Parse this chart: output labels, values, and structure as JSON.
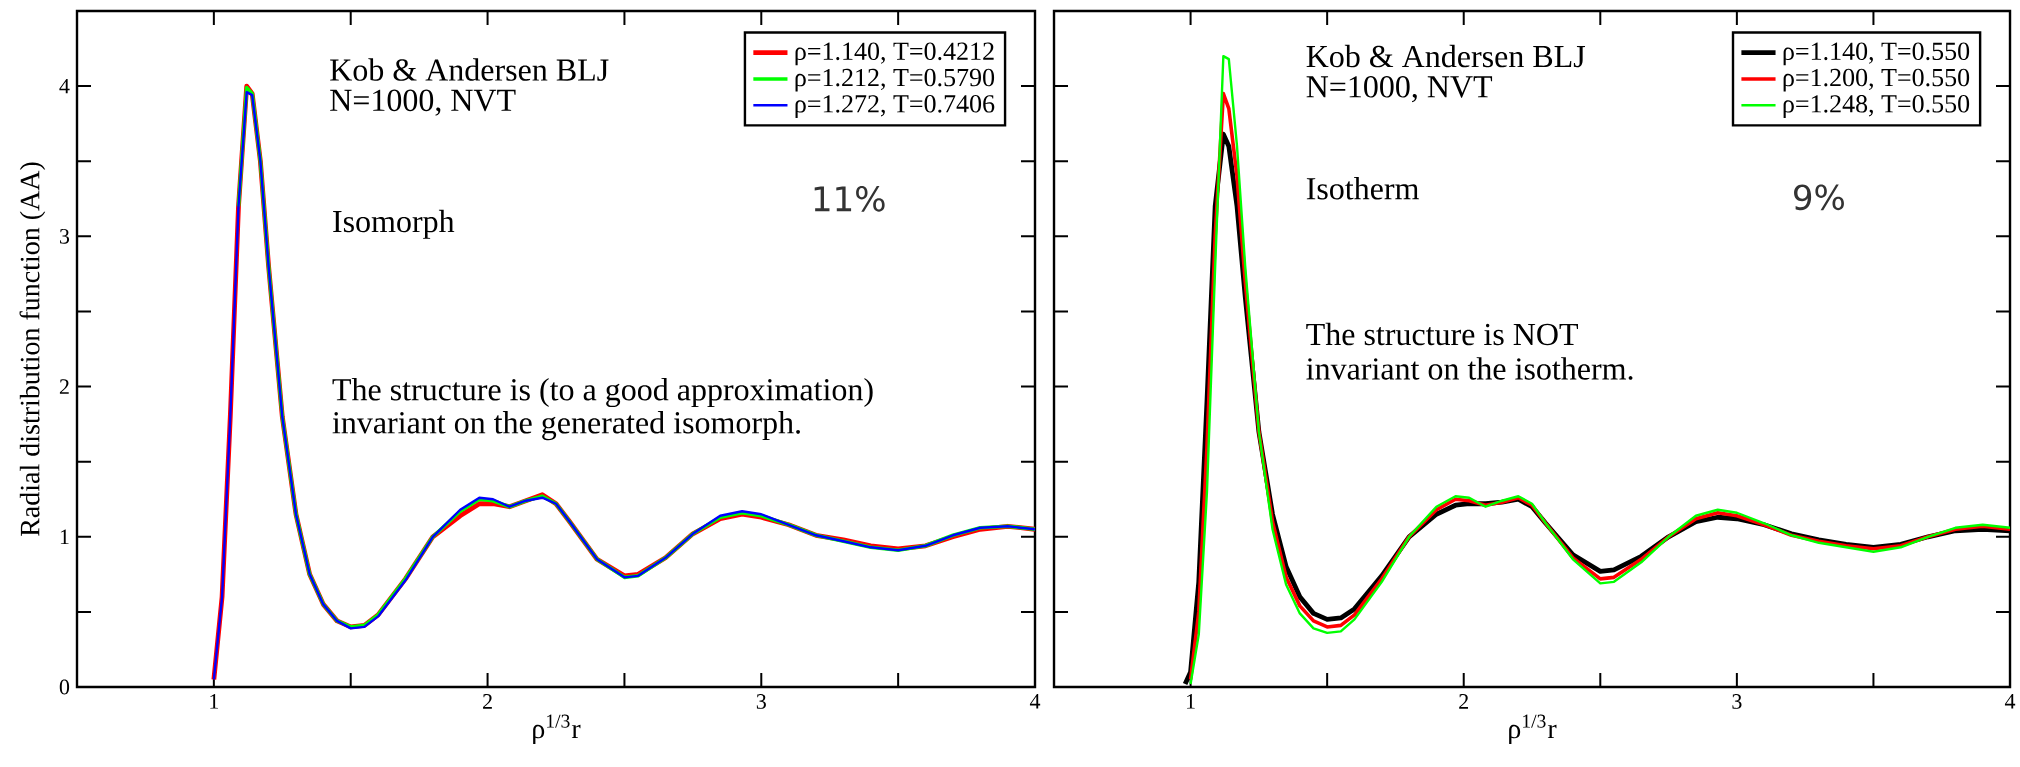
{
  "chart_data": [
    {
      "type": "line",
      "xlabel": "ρ$^{1/3}$r",
      "ylabel": "Radial distribution function (AA)",
      "annotations": [
        "Kob & Andersen  BLJ",
        "N=1000, NVT",
        "Isomorph",
        "11%",
        "The structure is (to a good approximation)",
        "invariant on the generated isomorph."
      ],
      "x": [
        1.0,
        1.03,
        1.06,
        1.09,
        1.12,
        1.14,
        1.17,
        1.2,
        1.25,
        1.3,
        1.35,
        1.4,
        1.45,
        1.5,
        1.55,
        1.6,
        1.7,
        1.8,
        1.9,
        1.97,
        2.02,
        2.08,
        2.14,
        2.2,
        2.25,
        2.3,
        2.4,
        2.5,
        2.55,
        2.65,
        2.75,
        2.85,
        2.93,
        3.0,
        3.1,
        3.2,
        3.3,
        3.4,
        3.5,
        3.6,
        3.7,
        3.8,
        3.9,
        4.0
      ],
      "series": [
        {
          "name": "ρ=1.140, T=0.4212",
          "color": "#ff0000",
          "values": [
            0.05,
            0.6,
            1.8,
            3.2,
            4.0,
            3.95,
            3.5,
            2.8,
            1.8,
            1.15,
            0.75,
            0.55,
            0.44,
            0.4,
            0.41,
            0.48,
            0.72,
            1.0,
            1.14,
            1.22,
            1.22,
            1.2,
            1.24,
            1.28,
            1.22,
            1.1,
            0.85,
            0.74,
            0.75,
            0.86,
            1.02,
            1.12,
            1.15,
            1.13,
            1.08,
            1.01,
            0.98,
            0.94,
            0.92,
            0.94,
            1.0,
            1.05,
            1.07,
            1.05
          ]
        },
        {
          "name": "ρ=1.212, T=0.5790",
          "color": "#00ff00",
          "values": [
            null,
            null,
            null,
            3.2,
            3.99,
            3.95,
            3.5,
            2.8,
            1.8,
            1.15,
            0.75,
            0.55,
            0.44,
            0.4,
            0.41,
            0.48,
            0.72,
            1.0,
            1.17,
            1.25,
            1.24,
            1.2,
            1.24,
            1.27,
            1.22,
            1.1,
            0.85,
            0.73,
            0.74,
            0.86,
            1.02,
            1.13,
            1.16,
            1.14,
            1.08,
            1.01,
            0.97,
            0.93,
            0.91,
            0.94,
            1.01,
            1.06,
            1.07,
            1.05
          ]
        },
        {
          "name": "ρ=1.272, T=0.7406",
          "color": "#0000ff",
          "values": [
            0.05,
            0.6,
            1.8,
            3.2,
            3.96,
            3.94,
            3.5,
            2.8,
            1.8,
            1.15,
            0.75,
            0.55,
            0.44,
            0.39,
            0.4,
            0.47,
            0.71,
            1.0,
            1.18,
            1.26,
            1.25,
            1.2,
            1.24,
            1.26,
            1.22,
            1.1,
            0.85,
            0.73,
            0.74,
            0.86,
            1.02,
            1.14,
            1.17,
            1.15,
            1.08,
            1.01,
            0.97,
            0.93,
            0.91,
            0.94,
            1.01,
            1.06,
            1.07,
            1.05
          ]
        }
      ],
      "xlim": [
        0.5,
        4
      ],
      "ylim": [
        0,
        4.5
      ],
      "xticks": [
        1,
        {
          "value": 1.5,
          "label": null
        },
        2,
        {
          "value": 2.5,
          "label": null
        },
        3,
        {
          "value": 3.5,
          "label": null
        },
        4
      ],
      "yticks": [
        0,
        {
          "value": 0.5,
          "label": null
        },
        1,
        {
          "value": 1.5,
          "label": null
        },
        2,
        {
          "value": 2.5,
          "label": null
        },
        3,
        {
          "value": 3.5,
          "label": null
        },
        4
      ],
      "legend": "top right",
      "grid": false
    },
    {
      "type": "line",
      "xlabel": "ρ$^{1/3}$r",
      "annotations": [
        "Kob & Andersen  BLJ",
        "N=1000, NVT",
        "Isotherm",
        "9%",
        "The structure is NOT",
        "invariant on the isotherm."
      ],
      "x": [
        0.98,
        1.0,
        1.03,
        1.06,
        1.09,
        1.12,
        1.14,
        1.17,
        1.2,
        1.25,
        1.3,
        1.35,
        1.4,
        1.45,
        1.5,
        1.55,
        1.6,
        1.7,
        1.8,
        1.9,
        1.97,
        2.02,
        2.08,
        2.14,
        2.2,
        2.25,
        2.3,
        2.4,
        2.5,
        2.55,
        2.65,
        2.75,
        2.85,
        2.93,
        3.0,
        3.1,
        3.2,
        3.3,
        3.4,
        3.5,
        3.6,
        3.7,
        3.8,
        3.9,
        4.0
      ],
      "series": [
        {
          "name": "ρ=1.140, T=0.550",
          "color": "#000000",
          "values": [
            0.02,
            0.1,
            0.7,
            1.9,
            3.2,
            3.68,
            3.6,
            3.2,
            2.6,
            1.7,
            1.15,
            0.8,
            0.6,
            0.49,
            0.45,
            0.46,
            0.52,
            0.74,
            1.0,
            1.15,
            1.21,
            1.22,
            1.22,
            1.23,
            1.25,
            1.2,
            1.09,
            0.88,
            0.77,
            0.78,
            0.87,
            1.0,
            1.1,
            1.13,
            1.12,
            1.08,
            1.02,
            0.98,
            0.95,
            0.93,
            0.95,
            1.0,
            1.04,
            1.05,
            1.04
          ]
        },
        {
          "name": "ρ=1.200, T=0.550",
          "color": "#ff0000",
          "values": [
            null,
            0.05,
            0.5,
            1.6,
            3.0,
            3.95,
            3.85,
            3.4,
            2.7,
            1.7,
            1.1,
            0.73,
            0.54,
            0.44,
            0.4,
            0.41,
            0.48,
            0.72,
            1.0,
            1.18,
            1.25,
            1.24,
            1.21,
            1.23,
            1.26,
            1.21,
            1.09,
            0.86,
            0.72,
            0.73,
            0.85,
            1.0,
            1.12,
            1.16,
            1.14,
            1.08,
            1.01,
            0.97,
            0.94,
            0.92,
            0.94,
            1.0,
            1.05,
            1.07,
            1.05
          ]
        },
        {
          "name": "ρ=1.248, T=0.550",
          "color": "#00ff00",
          "values": [
            null,
            0.02,
            0.35,
            1.3,
            2.8,
            4.2,
            4.18,
            3.6,
            2.8,
            1.7,
            1.05,
            0.68,
            0.49,
            0.39,
            0.36,
            0.37,
            0.45,
            0.7,
            1.0,
            1.2,
            1.27,
            1.26,
            1.2,
            1.24,
            1.27,
            1.22,
            1.09,
            0.85,
            0.69,
            0.7,
            0.83,
            1.0,
            1.14,
            1.18,
            1.16,
            1.09,
            1.01,
            0.96,
            0.93,
            0.9,
            0.93,
            1.0,
            1.06,
            1.08,
            1.06
          ]
        }
      ],
      "xlim": [
        0.5,
        4
      ],
      "ylim": [
        0,
        4.5
      ],
      "xticks": [
        1,
        {
          "value": 1.5,
          "label": null
        },
        2,
        {
          "value": 2.5,
          "label": null
        },
        3,
        {
          "value": 3.5,
          "label": null
        },
        4
      ],
      "yticks": [
        0,
        {
          "value": 0.5,
          "label": null
        },
        1,
        {
          "value": 1.5,
          "label": null
        },
        2,
        {
          "value": 2.5,
          "label": null
        },
        3,
        {
          "value": 3.5,
          "label": null
        },
        4
      ],
      "tick_labels": "x",
      "legend": "top right",
      "grid": false
    }
  ]
}
